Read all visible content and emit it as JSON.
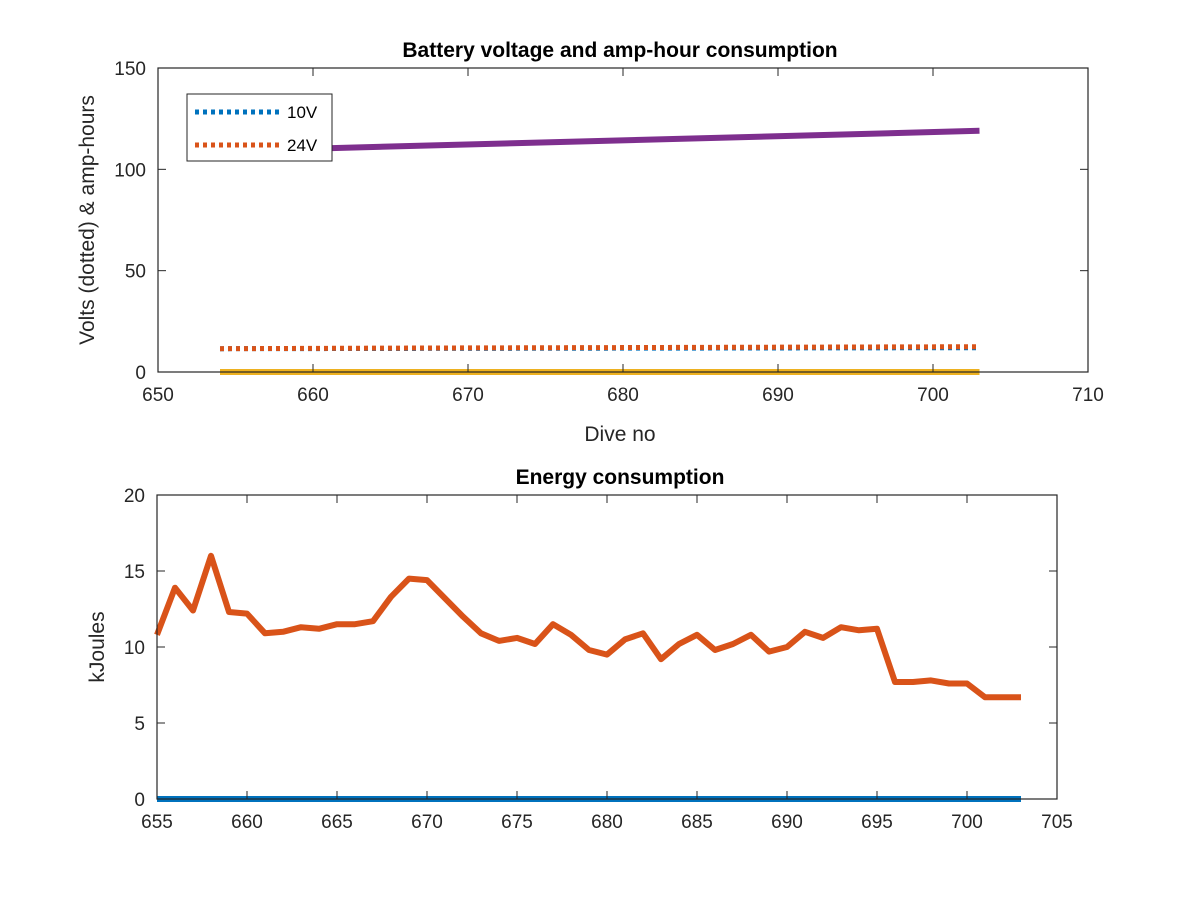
{
  "chart_data": [
    {
      "type": "line",
      "title": "Battery voltage and amp-hour consumption",
      "xlabel": "Dive no",
      "ylabel": "Volts (dotted) & amp-hours",
      "xlim": [
        650,
        710
      ],
      "ylim": [
        0,
        150
      ],
      "xticks": [
        650,
        660,
        670,
        680,
        690,
        700,
        710
      ],
      "yticks": [
        0,
        50,
        100,
        150
      ],
      "legend_position": "top-left",
      "series": [
        {
          "name": "10V",
          "color": "#0072BD",
          "style": "dotted",
          "x": [
            654,
            703
          ],
          "y": [
            11.5,
            12.0
          ]
        },
        {
          "name": "24V",
          "color": "#D95319",
          "style": "dotted",
          "x": [
            654,
            665,
            703
          ],
          "y": [
            11.5,
            11.8,
            12.5
          ]
        },
        {
          "color": "#EDB120",
          "style": "solid",
          "x": [
            654,
            703
          ],
          "y": [
            0,
            0
          ]
        },
        {
          "color": "#7E2F8E",
          "style": "solid",
          "x": [
            654,
            703
          ],
          "y": [
            109,
            119
          ]
        }
      ]
    },
    {
      "type": "line",
      "title": "Energy consumption",
      "xlabel": "",
      "ylabel": "kJoules",
      "xlim": [
        655,
        705
      ],
      "ylim": [
        0,
        20
      ],
      "xticks": [
        655,
        660,
        665,
        670,
        675,
        680,
        685,
        690,
        695,
        700,
        705
      ],
      "yticks": [
        0,
        5,
        10,
        15,
        20
      ],
      "series": [
        {
          "color": "#0072BD",
          "style": "solid",
          "x": [
            655,
            703
          ],
          "y": [
            0,
            0
          ]
        },
        {
          "color": "#D95319",
          "style": "solid",
          "x": [
            655,
            656,
            657,
            658,
            659,
            660,
            661,
            662,
            663,
            664,
            665,
            666,
            667,
            668,
            669,
            670,
            671,
            672,
            673,
            674,
            675,
            676,
            677,
            678,
            679,
            680,
            681,
            682,
            683,
            684,
            685,
            686,
            687,
            688,
            689,
            690,
            691,
            692,
            693,
            694,
            695,
            696,
            697,
            698,
            699,
            700,
            701,
            702,
            703
          ],
          "y": [
            10.8,
            13.9,
            12.4,
            16.0,
            12.3,
            12.2,
            10.9,
            11.0,
            11.3,
            11.2,
            11.5,
            11.5,
            11.7,
            13.3,
            14.5,
            14.4,
            13.2,
            12.0,
            10.9,
            10.4,
            10.6,
            10.2,
            11.5,
            10.8,
            9.8,
            9.5,
            10.5,
            10.9,
            9.2,
            10.2,
            10.8,
            9.8,
            10.2,
            10.8,
            9.7,
            10.0,
            11.0,
            10.6,
            11.3,
            11.1,
            11.2,
            7.7,
            7.7,
            7.8,
            7.6,
            7.6,
            6.7,
            6.7,
            6.7
          ]
        }
      ]
    }
  ]
}
